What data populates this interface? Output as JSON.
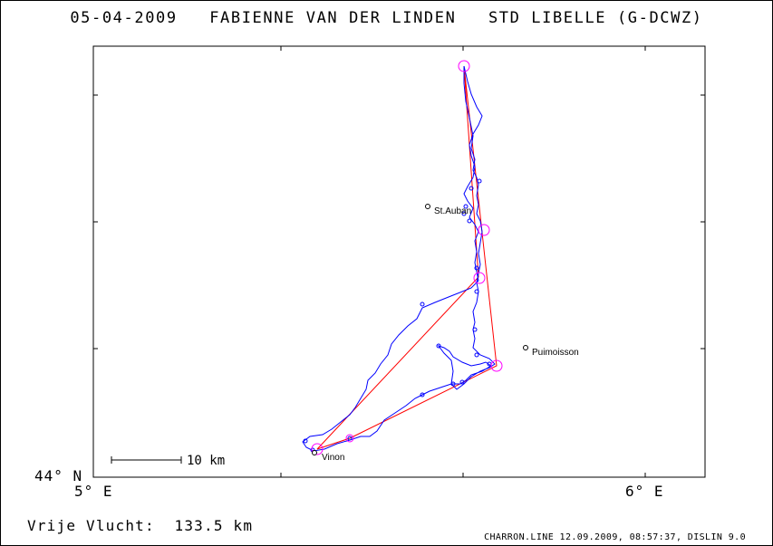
{
  "title": {
    "date": "05-04-2009",
    "pilot": "FABIENNE VAN DER LINDEN",
    "glider": "STD LIBELLE (G-DCWZ)"
  },
  "axes": {
    "lat_label": "44° N",
    "lon_labels": [
      "5° E",
      "6° E"
    ]
  },
  "places": [
    {
      "name": "St.Auban"
    },
    {
      "name": "Puimoisson"
    },
    {
      "name": "Vinon"
    }
  ],
  "scale": {
    "label": "10 km"
  },
  "distance": {
    "label": "Vrije Vlucht:",
    "value": "133.5 km"
  },
  "footer": "CHARRON.LINE 12.09.2009, 08:57:37, DISLIN 9.0",
  "colors": {
    "track": "#0000ff",
    "task": "#ff0000",
    "turnpoint": "#ff00ff"
  }
}
